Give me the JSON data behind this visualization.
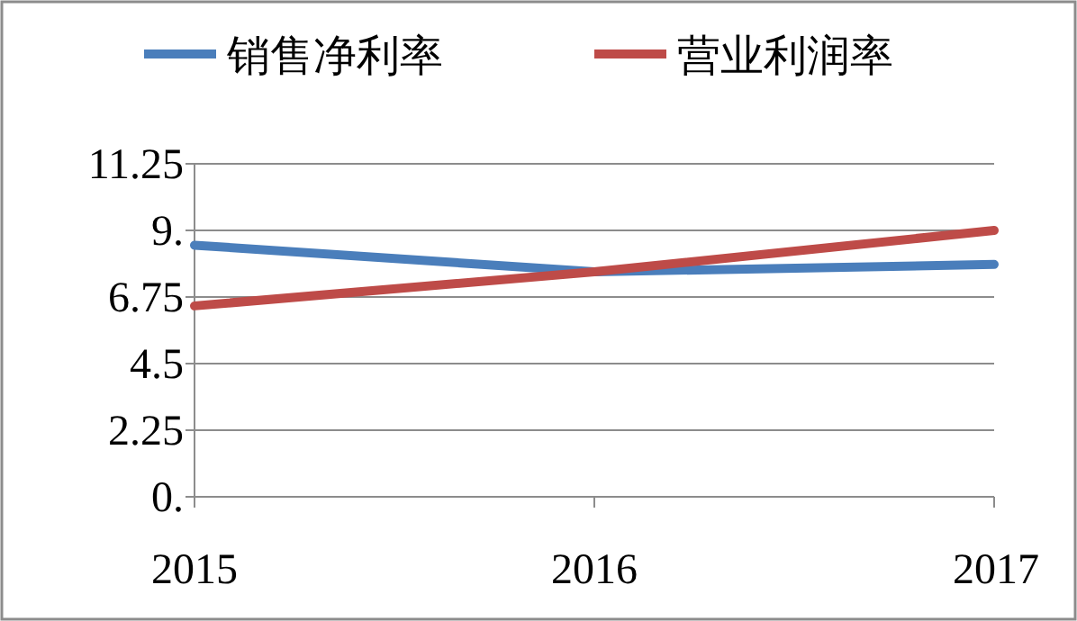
{
  "chart_data": {
    "type": "line",
    "categories": [
      "2015",
      "2016",
      "2017"
    ],
    "series": [
      {
        "name": "销售净利率",
        "color": "#4a7ebb",
        "values": [
          8.5,
          7.6,
          7.85
        ]
      },
      {
        "name": "营业利润率",
        "color": "#be4b48",
        "values": [
          6.45,
          7.6,
          9.0
        ]
      }
    ],
    "ylim": [
      0,
      11.25
    ],
    "yticks": [
      {
        "value": 0,
        "label": "0."
      },
      2.25,
      4.5,
      6.75,
      {
        "value": 9,
        "label": "9."
      },
      11.25
    ],
    "grid": "y",
    "legend": "top",
    "marker": "none",
    "line_style": "solid"
  }
}
